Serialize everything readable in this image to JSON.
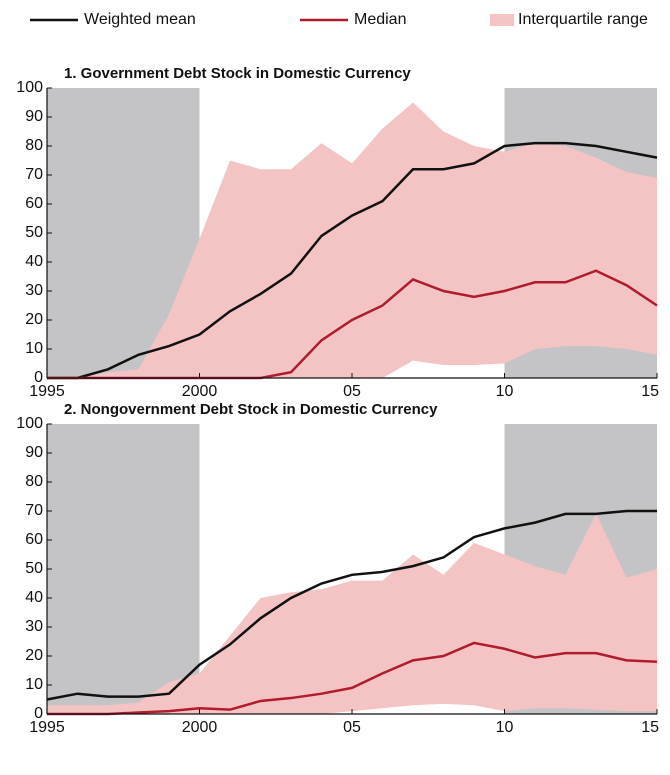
{
  "chart_data": [
    {
      "type": "line",
      "title": "1. Government Debt Stock in Domestic Currency",
      "x": [
        1995,
        1996,
        1997,
        1998,
        1999,
        2000,
        2001,
        2002,
        2003,
        2004,
        2005,
        2006,
        2007,
        2008,
        2009,
        2010,
        2011,
        2012,
        2013,
        2014,
        2015
      ],
      "xlim": [
        1995,
        2015
      ],
      "xticks": [
        1995,
        2000,
        {
          "value": 2005,
          "label": "05"
        },
        {
          "value": 2010,
          "label": "10"
        },
        {
          "value": 2015,
          "label": "15"
        }
      ],
      "ylim": [
        0,
        100
      ],
      "yticks": [
        0,
        10,
        20,
        30,
        40,
        50,
        60,
        70,
        80,
        90,
        100
      ],
      "shaded": [
        [
          1995,
          2000
        ],
        [
          2010,
          2015
        ]
      ],
      "shade_color": "#c4c4c6",
      "series": [
        {
          "name": "Interquartile range",
          "color": "#f4c4c4",
          "type": "band",
          "upper": [
            0,
            0,
            2,
            3,
            22,
            48,
            75,
            72,
            72,
            81,
            74,
            86,
            95,
            85,
            80,
            78,
            81,
            80,
            76,
            71,
            69
          ],
          "lower": [
            0,
            0,
            0,
            0,
            0,
            0,
            0,
            0,
            0,
            0,
            0,
            0,
            6,
            4.5,
            4.5,
            5,
            10,
            11,
            11,
            10,
            8
          ]
        },
        {
          "name": "Weighted mean",
          "color": "#111111",
          "values": [
            0,
            0,
            3,
            8,
            11,
            15,
            23,
            29,
            36,
            49,
            56,
            61,
            72,
            72,
            74,
            80,
            81,
            81,
            80,
            78,
            76
          ]
        },
        {
          "name": "Median",
          "color": "#b01c2e",
          "values": [
            0,
            0,
            0,
            0,
            0,
            0,
            0,
            0,
            2,
            13,
            20,
            25,
            34,
            30,
            28,
            30,
            33,
            33,
            37,
            32,
            25
          ]
        }
      ]
    },
    {
      "type": "line",
      "title": "2. Nongovernment Debt Stock in Domestic Currency",
      "x": [
        1995,
        1996,
        1997,
        1998,
        1999,
        2000,
        2001,
        2002,
        2003,
        2004,
        2005,
        2006,
        2007,
        2008,
        2009,
        2010,
        2011,
        2012,
        2013,
        2014,
        2015
      ],
      "xlim": [
        1995,
        2015
      ],
      "xticks": [
        1995,
        2000,
        {
          "value": 2005,
          "label": "05"
        },
        {
          "value": 2010,
          "label": "10"
        },
        {
          "value": 2015,
          "label": "15"
        }
      ],
      "ylim": [
        0,
        100
      ],
      "yticks": [
        0,
        10,
        20,
        30,
        40,
        50,
        60,
        70,
        80,
        90,
        100
      ],
      "shaded": [
        [
          1995,
          2000
        ],
        [
          2010,
          2015
        ]
      ],
      "shade_color": "#c4c4c6",
      "series": [
        {
          "color": "#f4c4c4",
          "type": "band",
          "upper": [
            3,
            3,
            3,
            4,
            11,
            14,
            27,
            40,
            42,
            43,
            46,
            46,
            55,
            48,
            59,
            55,
            51,
            48,
            69,
            47,
            50
          ],
          "lower": [
            0,
            0,
            0,
            0,
            0,
            0,
            0,
            0,
            0,
            0,
            1,
            2,
            3,
            3.5,
            3,
            1,
            2,
            2,
            1.5,
            1,
            1
          ]
        },
        {
          "color": "#111111",
          "values": [
            5,
            7,
            6,
            6,
            7,
            17,
            24,
            33,
            40,
            45,
            48,
            49,
            51,
            54,
            61,
            64,
            66,
            69,
            69,
            70,
            70
          ]
        },
        {
          "color": "#b01c2e",
          "values": [
            0,
            0,
            0,
            0.5,
            1,
            2,
            1.5,
            4.5,
            5.5,
            7,
            9,
            14,
            18.5,
            20,
            24.5,
            22.5,
            19.5,
            21,
            21,
            18.5,
            18
          ]
        }
      ]
    }
  ]
}
